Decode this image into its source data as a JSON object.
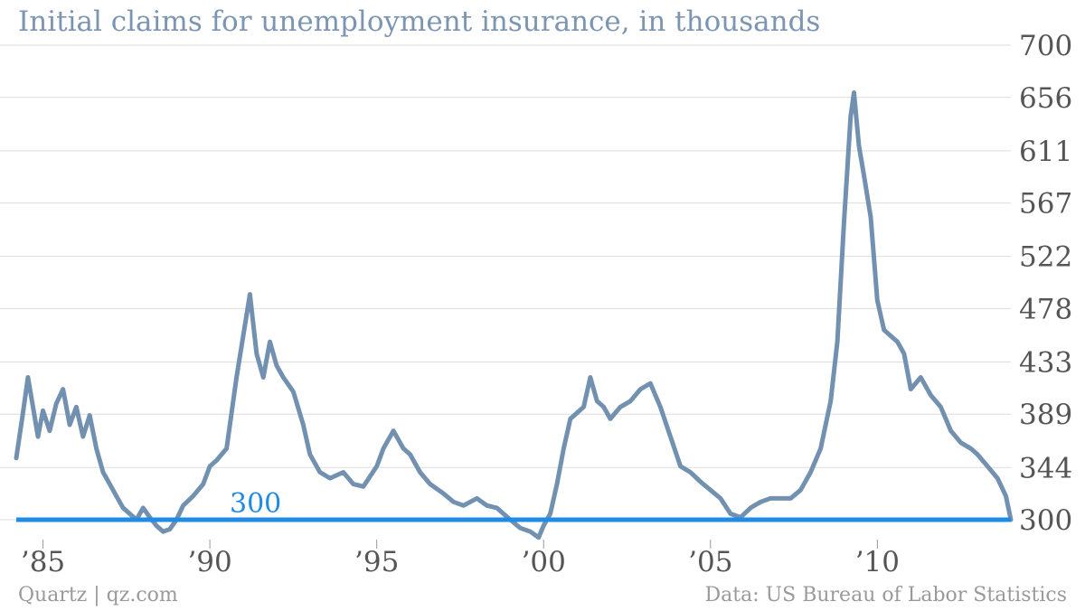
{
  "chart_data": {
    "type": "line",
    "title": "Initial claims for unemployment insurance, in thousands",
    "xlabel": "",
    "ylabel": "",
    "ylim": [
      300,
      700
    ],
    "xlim": [
      1984.2,
      2014.0
    ],
    "y_ticks": [
      700,
      656,
      611,
      567,
      522,
      478,
      433,
      389,
      344,
      300
    ],
    "x_ticks": [
      {
        "value": 1985,
        "label": "’85"
      },
      {
        "value": 1990,
        "label": "’90"
      },
      {
        "value": 1995,
        "label": "’95"
      },
      {
        "value": 2000,
        "label": "’00"
      },
      {
        "value": 2005,
        "label": "’05"
      },
      {
        "value": 2010,
        "label": "’10"
      }
    ],
    "grid": true,
    "reference_line": {
      "value": 300,
      "label": "300"
    },
    "series": [
      {
        "points": [
          [
            1984.2,
            352
          ],
          [
            1984.4,
            390
          ],
          [
            1984.55,
            420
          ],
          [
            1984.7,
            395
          ],
          [
            1984.85,
            370
          ],
          [
            1985.0,
            392
          ],
          [
            1985.2,
            375
          ],
          [
            1985.4,
            398
          ],
          [
            1985.6,
            410
          ],
          [
            1985.8,
            380
          ],
          [
            1986.0,
            395
          ],
          [
            1986.2,
            370
          ],
          [
            1986.4,
            388
          ],
          [
            1986.6,
            360
          ],
          [
            1986.8,
            340
          ],
          [
            1987.0,
            330
          ],
          [
            1987.2,
            320
          ],
          [
            1987.4,
            310
          ],
          [
            1987.6,
            305
          ],
          [
            1987.8,
            300
          ],
          [
            1988.0,
            310
          ],
          [
            1988.2,
            302
          ],
          [
            1988.4,
            295
          ],
          [
            1988.6,
            290
          ],
          [
            1988.8,
            292
          ],
          [
            1989.0,
            300
          ],
          [
            1989.2,
            312
          ],
          [
            1989.5,
            320
          ],
          [
            1989.8,
            330
          ],
          [
            1990.0,
            345
          ],
          [
            1990.2,
            350
          ],
          [
            1990.5,
            360
          ],
          [
            1990.8,
            420
          ],
          [
            1991.0,
            455
          ],
          [
            1991.2,
            490
          ],
          [
            1991.4,
            440
          ],
          [
            1991.6,
            420
          ],
          [
            1991.8,
            450
          ],
          [
            1992.0,
            430
          ],
          [
            1992.2,
            420
          ],
          [
            1992.5,
            408
          ],
          [
            1992.8,
            380
          ],
          [
            1993.0,
            355
          ],
          [
            1993.3,
            340
          ],
          [
            1993.6,
            335
          ],
          [
            1994.0,
            340
          ],
          [
            1994.3,
            330
          ],
          [
            1994.6,
            328
          ],
          [
            1995.0,
            345
          ],
          [
            1995.2,
            360
          ],
          [
            1995.5,
            375
          ],
          [
            1995.8,
            360
          ],
          [
            1996.0,
            355
          ],
          [
            1996.3,
            340
          ],
          [
            1996.6,
            330
          ],
          [
            1997.0,
            322
          ],
          [
            1997.3,
            315
          ],
          [
            1997.6,
            312
          ],
          [
            1998.0,
            318
          ],
          [
            1998.3,
            312
          ],
          [
            1998.6,
            310
          ],
          [
            1999.0,
            300
          ],
          [
            1999.3,
            293
          ],
          [
            1999.6,
            290
          ],
          [
            1999.85,
            285
          ],
          [
            2000.0,
            295
          ],
          [
            2000.2,
            305
          ],
          [
            2000.4,
            330
          ],
          [
            2000.6,
            360
          ],
          [
            2000.8,
            385
          ],
          [
            2001.0,
            390
          ],
          [
            2001.2,
            395
          ],
          [
            2001.4,
            420
          ],
          [
            2001.6,
            400
          ],
          [
            2001.8,
            395
          ],
          [
            2002.0,
            385
          ],
          [
            2002.3,
            395
          ],
          [
            2002.6,
            400
          ],
          [
            2002.9,
            410
          ],
          [
            2003.2,
            415
          ],
          [
            2003.5,
            395
          ],
          [
            2003.8,
            370
          ],
          [
            2004.1,
            345
          ],
          [
            2004.4,
            340
          ],
          [
            2004.7,
            332
          ],
          [
            2005.0,
            325
          ],
          [
            2005.3,
            318
          ],
          [
            2005.6,
            305
          ],
          [
            2005.9,
            302
          ],
          [
            2006.2,
            310
          ],
          [
            2006.5,
            315
          ],
          [
            2006.8,
            318
          ],
          [
            2007.1,
            318
          ],
          [
            2007.4,
            318
          ],
          [
            2007.7,
            325
          ],
          [
            2008.0,
            340
          ],
          [
            2008.3,
            360
          ],
          [
            2008.6,
            400
          ],
          [
            2008.8,
            450
          ],
          [
            2009.0,
            550
          ],
          [
            2009.2,
            640
          ],
          [
            2009.3,
            660
          ],
          [
            2009.45,
            615
          ],
          [
            2009.6,
            590
          ],
          [
            2009.8,
            555
          ],
          [
            2010.0,
            485
          ],
          [
            2010.2,
            460
          ],
          [
            2010.4,
            455
          ],
          [
            2010.6,
            450
          ],
          [
            2010.8,
            440
          ],
          [
            2011.0,
            410
          ],
          [
            2011.3,
            420
          ],
          [
            2011.6,
            405
          ],
          [
            2011.9,
            395
          ],
          [
            2012.2,
            375
          ],
          [
            2012.5,
            365
          ],
          [
            2012.8,
            360
          ],
          [
            2013.0,
            355
          ],
          [
            2013.3,
            345
          ],
          [
            2013.6,
            335
          ],
          [
            2013.85,
            320
          ],
          [
            2014.0,
            300
          ]
        ]
      }
    ]
  },
  "header": {
    "title": "Initial claims for unemployment insurance, in thousands"
  },
  "footer": {
    "source_left": "Quartz | qz.com",
    "source_right": "Data: US Bureau of Labor Statistics"
  },
  "colors": {
    "series": "#7290b0",
    "reference": "#1e8be6",
    "grid": "#dddddd",
    "title": "#7b95b3",
    "axis_text": "#555555",
    "footer_text": "#9a9a9a"
  }
}
